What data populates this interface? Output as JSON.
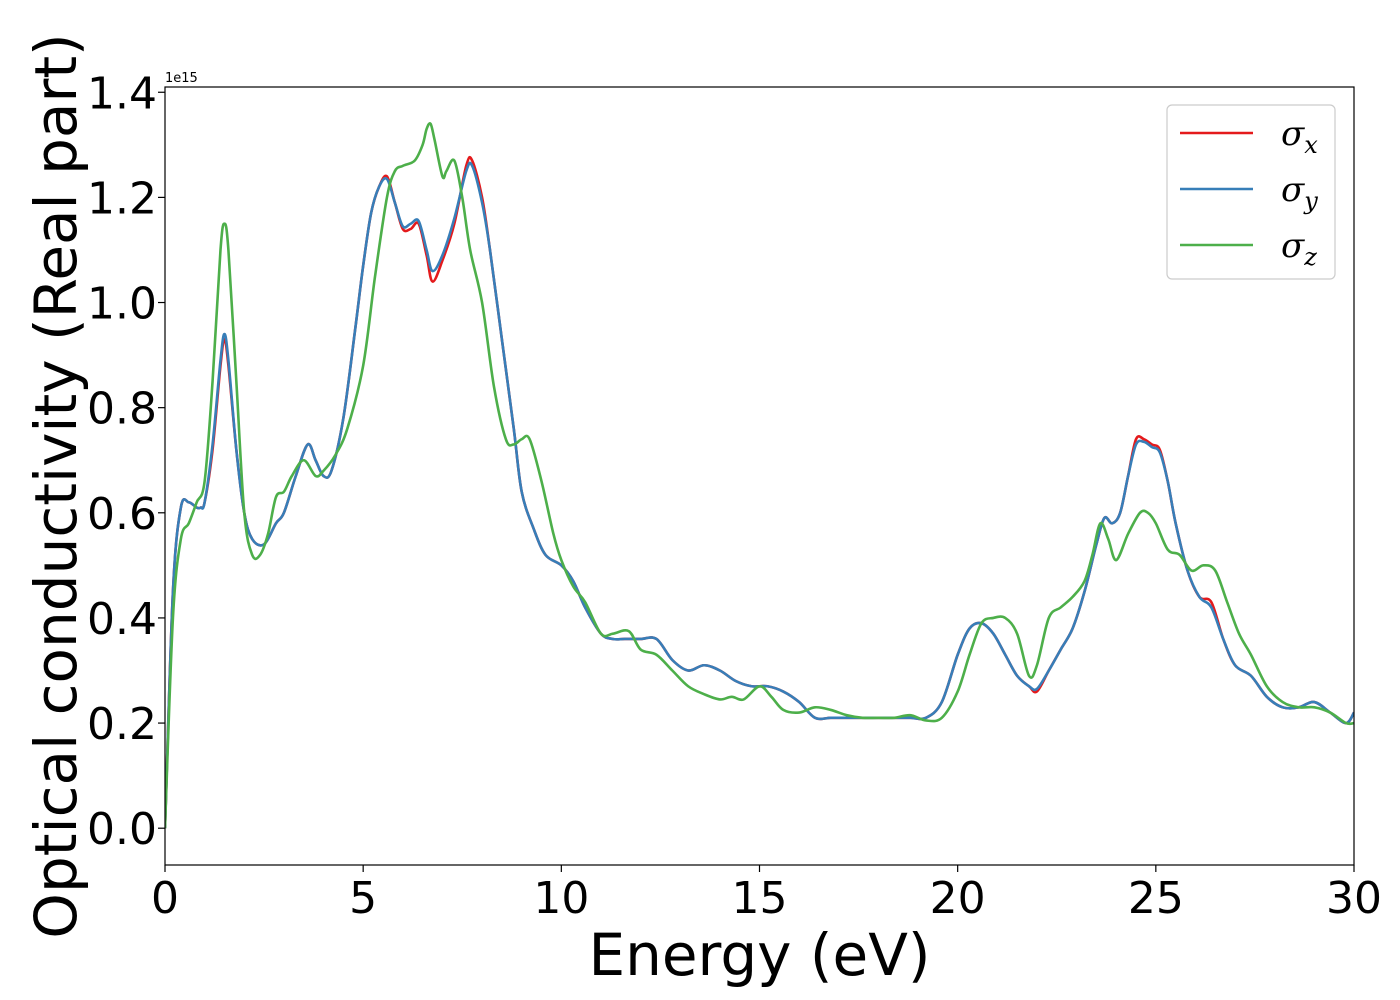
{
  "chart_data": {
    "type": "line",
    "xlabel": "Energy (eV)",
    "ylabel": "Optical conductivity (Real part)",
    "y_offset_text": "1e15",
    "xlim": [
      0,
      30
    ],
    "ylim": [
      -0.07,
      1.41
    ],
    "x_ticks": [
      0,
      5,
      10,
      15,
      20,
      25,
      30
    ],
    "x_tick_labels": [
      "0",
      "5",
      "10",
      "15",
      "20",
      "25",
      "30"
    ],
    "y_ticks": [
      0.0,
      0.2,
      0.4,
      0.6,
      0.8,
      1.0,
      1.2,
      1.4
    ],
    "y_tick_labels": [
      "0.0",
      "0.2",
      "0.4",
      "0.6",
      "0.8",
      "1.0",
      "1.2",
      "1.4"
    ],
    "grid": false,
    "legend_position": "top-right",
    "series": [
      {
        "name": "σx",
        "symbol": "σ",
        "subscript": "x",
        "color": "#e41a1c",
        "x": [
          0,
          0.2,
          0.4,
          0.6,
          0.8,
          0.9,
          1.0,
          1.2,
          1.4,
          1.5,
          1.6,
          1.8,
          2.0,
          2.2,
          2.5,
          2.8,
          3.0,
          3.3,
          3.6,
          3.8,
          4.0,
          4.2,
          4.5,
          4.8,
          5.0,
          5.2,
          5.4,
          5.6,
          5.8,
          6.0,
          6.2,
          6.4,
          6.6,
          6.75,
          7.0,
          7.3,
          7.6,
          7.75,
          8.0,
          8.2,
          8.5,
          8.8,
          9.0,
          9.3,
          9.6,
          10.0,
          10.3,
          10.6,
          11.0,
          11.3,
          11.6,
          12.0,
          12.4,
          12.8,
          13.2,
          13.6,
          14.0,
          14.4,
          14.8,
          15.2,
          15.6,
          16.0,
          16.4,
          16.8,
          17.2,
          17.6,
          18.0,
          18.4,
          18.8,
          19.2,
          19.6,
          20.0,
          20.3,
          20.6,
          20.9,
          21.2,
          21.5,
          21.8,
          22.0,
          22.3,
          22.6,
          22.9,
          23.2,
          23.5,
          23.7,
          23.9,
          24.1,
          24.3,
          24.5,
          24.7,
          24.9,
          25.1,
          25.3,
          25.5,
          25.8,
          26.1,
          26.4,
          26.7,
          27.0,
          27.4,
          27.8,
          28.2,
          28.6,
          29.0,
          29.4,
          29.8,
          30.0
        ],
        "values": [
          0.0,
          0.45,
          0.61,
          0.62,
          0.61,
          0.61,
          0.62,
          0.72,
          0.88,
          0.93,
          0.88,
          0.72,
          0.6,
          0.55,
          0.54,
          0.58,
          0.6,
          0.67,
          0.73,
          0.7,
          0.67,
          0.68,
          0.78,
          0.95,
          1.07,
          1.17,
          1.22,
          1.24,
          1.19,
          1.14,
          1.14,
          1.15,
          1.09,
          1.04,
          1.08,
          1.15,
          1.26,
          1.27,
          1.2,
          1.1,
          0.93,
          0.76,
          0.64,
          0.57,
          0.52,
          0.5,
          0.47,
          0.42,
          0.37,
          0.36,
          0.36,
          0.36,
          0.36,
          0.32,
          0.3,
          0.31,
          0.3,
          0.28,
          0.27,
          0.27,
          0.26,
          0.24,
          0.21,
          0.21,
          0.21,
          0.21,
          0.21,
          0.21,
          0.21,
          0.21,
          0.24,
          0.33,
          0.38,
          0.39,
          0.37,
          0.33,
          0.29,
          0.27,
          0.26,
          0.3,
          0.34,
          0.38,
          0.45,
          0.54,
          0.59,
          0.58,
          0.6,
          0.67,
          0.74,
          0.74,
          0.73,
          0.72,
          0.66,
          0.58,
          0.49,
          0.44,
          0.43,
          0.36,
          0.31,
          0.29,
          0.25,
          0.23,
          0.23,
          0.24,
          0.22,
          0.2,
          0.22
        ]
      },
      {
        "name": "σy",
        "symbol": "σ",
        "subscript": "y",
        "color": "#377eb8",
        "x": [
          0,
          0.2,
          0.4,
          0.6,
          0.8,
          0.9,
          1.0,
          1.2,
          1.4,
          1.5,
          1.6,
          1.8,
          2.0,
          2.2,
          2.5,
          2.8,
          3.0,
          3.3,
          3.6,
          3.8,
          4.0,
          4.2,
          4.5,
          4.8,
          5.0,
          5.2,
          5.4,
          5.6,
          5.8,
          6.0,
          6.2,
          6.4,
          6.6,
          6.75,
          7.0,
          7.3,
          7.6,
          7.75,
          8.0,
          8.2,
          8.5,
          8.8,
          9.0,
          9.3,
          9.6,
          10.0,
          10.3,
          10.6,
          11.0,
          11.3,
          11.6,
          12.0,
          12.4,
          12.8,
          13.2,
          13.6,
          14.0,
          14.4,
          14.8,
          15.2,
          15.6,
          16.0,
          16.4,
          16.8,
          17.2,
          17.6,
          18.0,
          18.4,
          18.8,
          19.2,
          19.6,
          20.0,
          20.3,
          20.6,
          20.9,
          21.2,
          21.5,
          21.8,
          22.0,
          22.3,
          22.6,
          22.9,
          23.2,
          23.5,
          23.7,
          23.9,
          24.1,
          24.3,
          24.5,
          24.7,
          24.9,
          25.1,
          25.3,
          25.5,
          25.8,
          26.1,
          26.4,
          26.7,
          27.0,
          27.4,
          27.8,
          28.2,
          28.6,
          29.0,
          29.4,
          29.8,
          30.0
        ],
        "values": [
          0.0,
          0.45,
          0.61,
          0.62,
          0.61,
          0.61,
          0.62,
          0.73,
          0.89,
          0.94,
          0.89,
          0.72,
          0.6,
          0.55,
          0.54,
          0.58,
          0.6,
          0.67,
          0.73,
          0.7,
          0.67,
          0.68,
          0.78,
          0.95,
          1.07,
          1.17,
          1.22,
          1.235,
          1.19,
          1.145,
          1.15,
          1.155,
          1.1,
          1.06,
          1.09,
          1.16,
          1.25,
          1.26,
          1.19,
          1.1,
          0.93,
          0.76,
          0.64,
          0.57,
          0.52,
          0.5,
          0.47,
          0.42,
          0.37,
          0.36,
          0.36,
          0.36,
          0.36,
          0.32,
          0.3,
          0.31,
          0.3,
          0.28,
          0.27,
          0.27,
          0.26,
          0.24,
          0.21,
          0.21,
          0.21,
          0.21,
          0.21,
          0.21,
          0.21,
          0.21,
          0.24,
          0.33,
          0.38,
          0.39,
          0.37,
          0.33,
          0.29,
          0.27,
          0.265,
          0.3,
          0.34,
          0.38,
          0.45,
          0.54,
          0.59,
          0.58,
          0.6,
          0.67,
          0.73,
          0.735,
          0.725,
          0.715,
          0.66,
          0.58,
          0.49,
          0.44,
          0.42,
          0.36,
          0.31,
          0.29,
          0.25,
          0.23,
          0.23,
          0.24,
          0.22,
          0.2,
          0.22
        ]
      },
      {
        "name": "σz",
        "symbol": "σ",
        "subscript": "z",
        "color": "#4daf4a",
        "x": [
          0,
          0.2,
          0.4,
          0.6,
          0.8,
          1.0,
          1.2,
          1.4,
          1.5,
          1.6,
          1.8,
          2.0,
          2.2,
          2.4,
          2.6,
          2.8,
          3.0,
          3.2,
          3.5,
          3.8,
          4.0,
          4.3,
          4.6,
          5.0,
          5.3,
          5.6,
          5.8,
          6.0,
          6.3,
          6.5,
          6.6,
          6.7,
          6.8,
          7.0,
          7.1,
          7.3,
          7.5,
          7.7,
          8.0,
          8.3,
          8.6,
          8.8,
          9.0,
          9.2,
          9.5,
          9.8,
          10.0,
          10.3,
          10.6,
          11.0,
          11.3,
          11.7,
          12.0,
          12.4,
          12.8,
          13.2,
          13.6,
          14.0,
          14.3,
          14.6,
          15.0,
          15.3,
          15.6,
          16.0,
          16.4,
          16.8,
          17.2,
          17.6,
          18.0,
          18.4,
          18.8,
          19.2,
          19.6,
          20.0,
          20.3,
          20.6,
          20.9,
          21.2,
          21.5,
          21.8,
          22.0,
          22.3,
          22.6,
          22.9,
          23.2,
          23.4,
          23.6,
          23.8,
          24.0,
          24.3,
          24.6,
          24.8,
          25.0,
          25.3,
          25.6,
          25.9,
          26.2,
          26.5,
          26.8,
          27.1,
          27.4,
          27.8,
          28.2,
          28.6,
          29.0,
          29.4,
          29.8,
          30.0
        ],
        "values": [
          0.0,
          0.4,
          0.55,
          0.58,
          0.62,
          0.66,
          0.85,
          1.1,
          1.15,
          1.1,
          0.85,
          0.6,
          0.52,
          0.52,
          0.56,
          0.63,
          0.64,
          0.67,
          0.7,
          0.67,
          0.68,
          0.71,
          0.76,
          0.88,
          1.05,
          1.2,
          1.25,
          1.26,
          1.27,
          1.3,
          1.33,
          1.34,
          1.31,
          1.24,
          1.25,
          1.27,
          1.2,
          1.1,
          1.0,
          0.84,
          0.74,
          0.73,
          0.74,
          0.74,
          0.66,
          0.56,
          0.51,
          0.46,
          0.43,
          0.37,
          0.37,
          0.375,
          0.34,
          0.33,
          0.3,
          0.27,
          0.255,
          0.245,
          0.25,
          0.245,
          0.27,
          0.25,
          0.225,
          0.22,
          0.23,
          0.225,
          0.215,
          0.21,
          0.21,
          0.21,
          0.215,
          0.205,
          0.21,
          0.26,
          0.33,
          0.39,
          0.4,
          0.4,
          0.37,
          0.29,
          0.31,
          0.4,
          0.42,
          0.44,
          0.47,
          0.52,
          0.58,
          0.55,
          0.51,
          0.56,
          0.6,
          0.6,
          0.58,
          0.53,
          0.52,
          0.49,
          0.5,
          0.49,
          0.43,
          0.37,
          0.33,
          0.27,
          0.24,
          0.23,
          0.23,
          0.22,
          0.2,
          0.2
        ]
      }
    ]
  }
}
